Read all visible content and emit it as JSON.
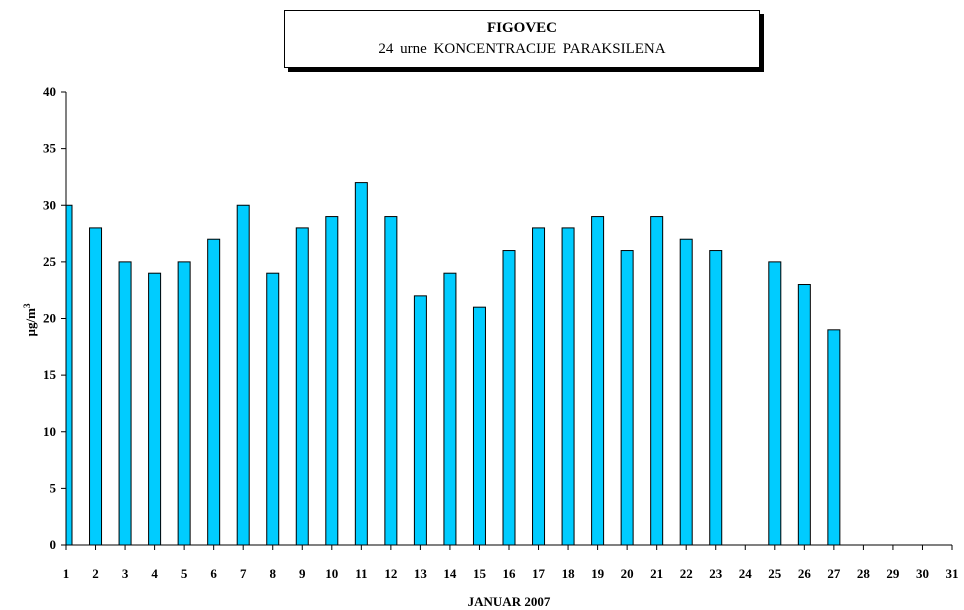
{
  "chart_data": {
    "type": "bar",
    "title": "FIGOVEC",
    "subtitle": "24 urne KONCENTRACIJE PARAKSILENA",
    "xlabel": "JANUAR 2007",
    "ylabel": "µg/m3",
    "ylabel_main": "µg/m",
    "ylabel_sup": "3",
    "ylim": [
      0,
      40
    ],
    "yticks": [
      0,
      5,
      10,
      15,
      20,
      25,
      30,
      35,
      40
    ],
    "categories": [
      "1",
      "2",
      "3",
      "4",
      "5",
      "6",
      "7",
      "8",
      "9",
      "10",
      "11",
      "12",
      "13",
      "14",
      "15",
      "16",
      "17",
      "18",
      "19",
      "20",
      "21",
      "22",
      "23",
      "24",
      "25",
      "26",
      "27",
      "28",
      "29",
      "30",
      "31"
    ],
    "values": [
      30,
      28,
      25,
      24,
      25,
      27,
      30,
      24,
      28,
      29,
      32,
      29,
      22,
      24,
      21,
      26,
      28,
      28,
      29,
      26,
      29,
      27,
      26,
      null,
      25,
      23,
      19,
      null,
      null,
      null,
      null
    ],
    "bar_color": "#00ccff",
    "grid": false,
    "legend": "none"
  }
}
